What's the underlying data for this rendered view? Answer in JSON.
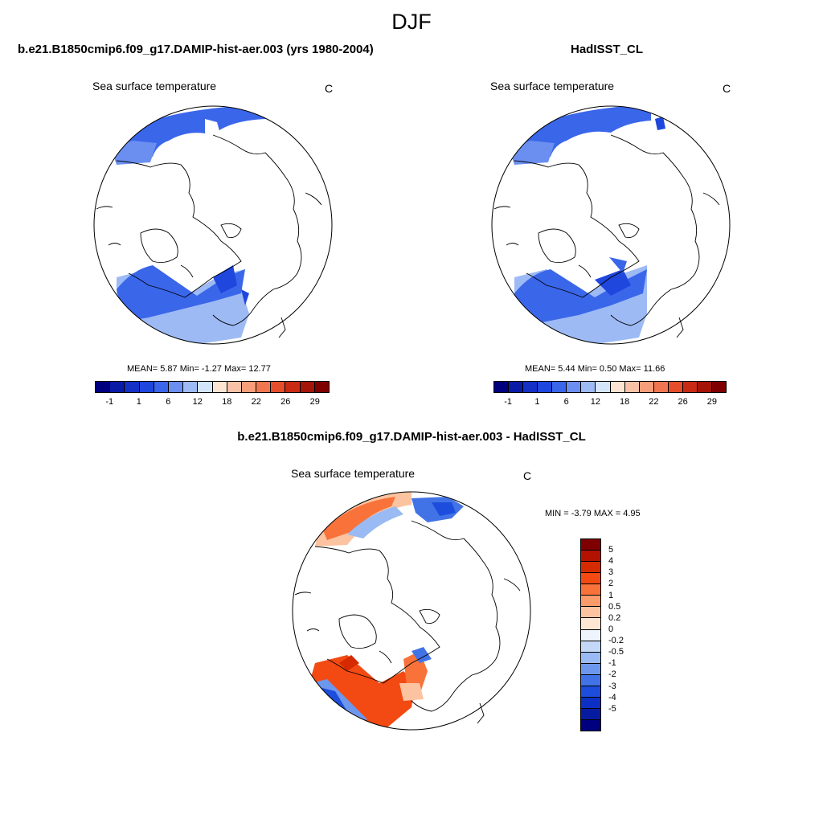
{
  "title": "DJF",
  "panels": [
    {
      "title": "b.e21.B1850cmip6.f09_g17.DAMIP-hist-aer.003 (yrs 1980-2004)",
      "subtitle": "Sea surface temperature",
      "units": "C",
      "stats": "MEAN=   5.87  Min=  -1.27  Max=  12.77"
    },
    {
      "title": "HadISST_CL",
      "subtitle": "Sea surface temperature",
      "units": "C",
      "stats": "MEAN=   5.44  Min=   0.50  Max=  11.66"
    },
    {
      "title": "b.e21.B1850cmip6.f09_g17.DAMIP-hist-aer.003 - HadISST_CL",
      "subtitle": "Sea surface temperature",
      "units": "C",
      "stats": "MIN =  -3.79 MAX =   4.95"
    }
  ],
  "chart_data": [
    {
      "type": "heatmap",
      "projection": "north polar stereographic",
      "variable": "Sea surface temperature",
      "units": "C",
      "mean": 5.87,
      "min": -1.27,
      "max": 12.77,
      "colorbar_ticks": [
        "-1",
        "1",
        "6",
        "12",
        "18",
        "22",
        "26",
        "29"
      ],
      "colorbar_colors": [
        "#00007f",
        "#0a1ba6",
        "#1530c4",
        "#1f47dd",
        "#3a66ea",
        "#6b8ff0",
        "#9dbaf5",
        "#d4e4fb",
        "#fde3d2",
        "#f9c2a6",
        "#f59e79",
        "#ef7650",
        "#e54d2b",
        "#c92a14",
        "#a51409",
        "#7f0000"
      ]
    },
    {
      "type": "heatmap",
      "projection": "north polar stereographic",
      "variable": "Sea surface temperature",
      "units": "C",
      "mean": 5.44,
      "min": 0.5,
      "max": 11.66,
      "colorbar_ticks": [
        "-1",
        "1",
        "6",
        "12",
        "18",
        "22",
        "26",
        "29"
      ],
      "colorbar_colors": [
        "#00007f",
        "#0a1ba6",
        "#1530c4",
        "#1f47dd",
        "#3a66ea",
        "#6b8ff0",
        "#9dbaf5",
        "#d4e4fb",
        "#fde3d2",
        "#f9c2a6",
        "#f59e79",
        "#ef7650",
        "#e54d2b",
        "#c92a14",
        "#a51409",
        "#7f0000"
      ]
    },
    {
      "type": "heatmap",
      "projection": "north polar stereographic",
      "variable": "Sea surface temperature difference",
      "units": "C",
      "min": -3.79,
      "max": 4.95,
      "colorbar_ticks": [
        "5",
        "4",
        "3",
        "2",
        "1",
        "0.5",
        "0.2",
        "0",
        "-0.2",
        "-0.5",
        "-1",
        "-2",
        "-3",
        "-4",
        "-5"
      ],
      "colorbar_colors": [
        "#7f0000",
        "#b31200",
        "#d62a00",
        "#f24a12",
        "#f9723a",
        "#fb9b6c",
        "#fcc3a0",
        "#fde6d3",
        "#eef4fc",
        "#c4d8f7",
        "#99baf2",
        "#6d97ec",
        "#4273e6",
        "#1d4ddc",
        "#0c2fc4",
        "#061ca0",
        "#00007f"
      ]
    }
  ]
}
